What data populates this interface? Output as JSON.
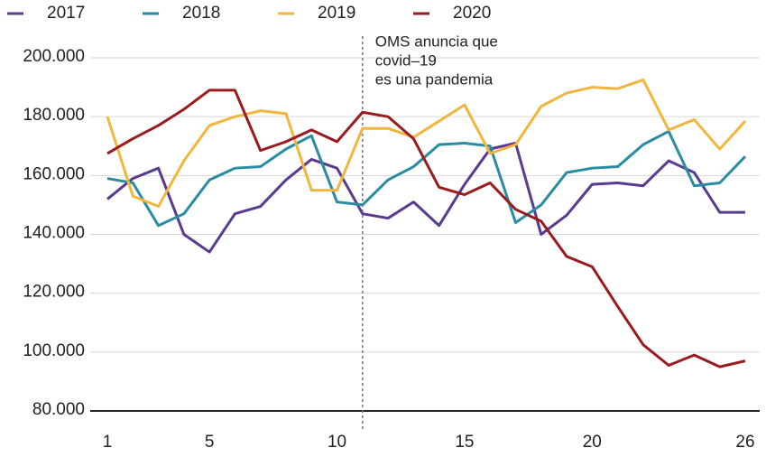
{
  "chart_data": {
    "type": "line",
    "x": [
      1,
      2,
      3,
      4,
      5,
      6,
      7,
      8,
      9,
      10,
      11,
      12,
      13,
      14,
      15,
      16,
      17,
      18,
      19,
      20,
      21,
      22,
      23,
      24,
      25,
      26
    ],
    "series": [
      {
        "name": "2017",
        "color": "#5a3a8e",
        "values": [
          152000,
          159000,
          162500,
          140000,
          134000,
          147000,
          149500,
          158500,
          165500,
          162500,
          147000,
          145500,
          151000,
          143000,
          157000,
          169000,
          171000,
          140000,
          146500,
          157000,
          157500,
          156500,
          165000,
          161000,
          147500,
          147500
        ]
      },
      {
        "name": "2018",
        "color": "#2a8ca2",
        "values": [
          159000,
          157500,
          143000,
          147000,
          158500,
          162500,
          163000,
          169000,
          173500,
          151000,
          150000,
          158500,
          163000,
          170500,
          171000,
          170000,
          144000,
          150000,
          161000,
          162500,
          163000,
          170500,
          175000,
          156500,
          157500,
          166500
        ]
      },
      {
        "name": "2019",
        "color": "#f2b63e",
        "values": [
          180000,
          153000,
          149500,
          165000,
          177000,
          180000,
          182000,
          181000,
          155000,
          155000,
          176000,
          176000,
          173000,
          178500,
          184000,
          167500,
          170500,
          183500,
          188000,
          190000,
          189500,
          192500,
          175500,
          179000,
          169000,
          178500
        ]
      },
      {
        "name": "2020",
        "color": "#9a1b1e",
        "values": [
          167500,
          172500,
          177000,
          182500,
          189000,
          189000,
          168500,
          171500,
          175500,
          171500,
          181500,
          180000,
          172500,
          156000,
          153500,
          157500,
          148500,
          144500,
          132500,
          129000,
          115500,
          102500,
          95500,
          99000,
          95000,
          97000
        ]
      }
    ],
    "xlim": [
      1,
      26
    ],
    "xticks": [
      1,
      5,
      10,
      15,
      20,
      26
    ],
    "ylim": [
      80000,
      200000
    ],
    "yticks": [
      {
        "value": 80000,
        "label": "80.000"
      },
      {
        "value": 100000,
        "label": "100.000"
      },
      {
        "value": 120000,
        "label": "120.000"
      },
      {
        "value": 140000,
        "label": "140.000"
      },
      {
        "value": 160000,
        "label": "160.000"
      },
      {
        "value": 180000,
        "label": "180.000"
      },
      {
        "value": 200000,
        "label": "200.000"
      }
    ],
    "grid": true,
    "annotation": {
      "x": 11,
      "lines": [
        "OMS anuncia que",
        "covid–19",
        "es una pandemia"
      ]
    }
  }
}
